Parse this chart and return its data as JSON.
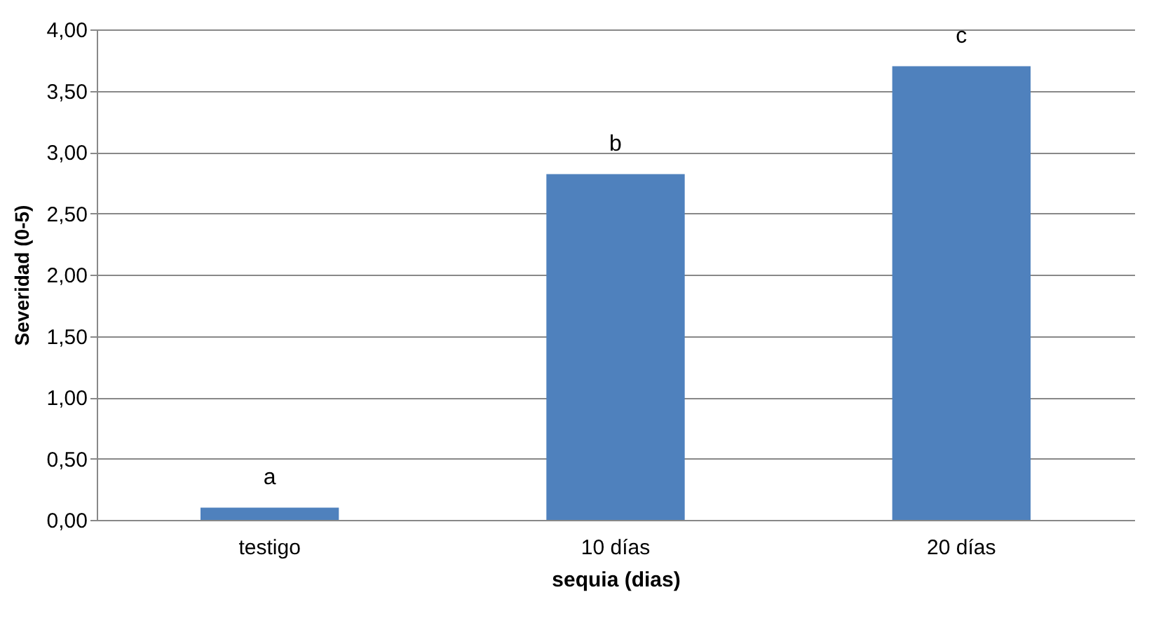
{
  "chart_data": {
    "type": "bar",
    "xlabel": "sequia (dias)",
    "ylabel": "Severidad (0-5)",
    "categories": [
      "testigo",
      "10 días",
      "20 días"
    ],
    "series": [
      {
        "color": "#4f81bd",
        "values": [
          0.1,
          2.82,
          3.7
        ]
      }
    ],
    "ylim": [
      0,
      4
    ],
    "yticks": [
      {
        "value": 0,
        "label": "0,00"
      },
      {
        "value": 0.5,
        "label": "0,50"
      },
      {
        "value": 1,
        "label": "1,00"
      },
      {
        "value": 1.5,
        "label": "1,50"
      },
      {
        "value": 2,
        "label": "2,00"
      },
      {
        "value": 2.5,
        "label": "2,50"
      },
      {
        "value": 3,
        "label": "3,00"
      },
      {
        "value": 3.5,
        "label": "3,50"
      },
      {
        "value": 4,
        "label": "4,00"
      }
    ],
    "grid": "y",
    "annotations": [
      {
        "text": "a",
        "x": "testigo",
        "y": 0.1
      },
      {
        "text": "b",
        "x": "10 días",
        "y": 2.82
      },
      {
        "text": "c",
        "x": "20 días",
        "y": 3.7
      }
    ]
  }
}
